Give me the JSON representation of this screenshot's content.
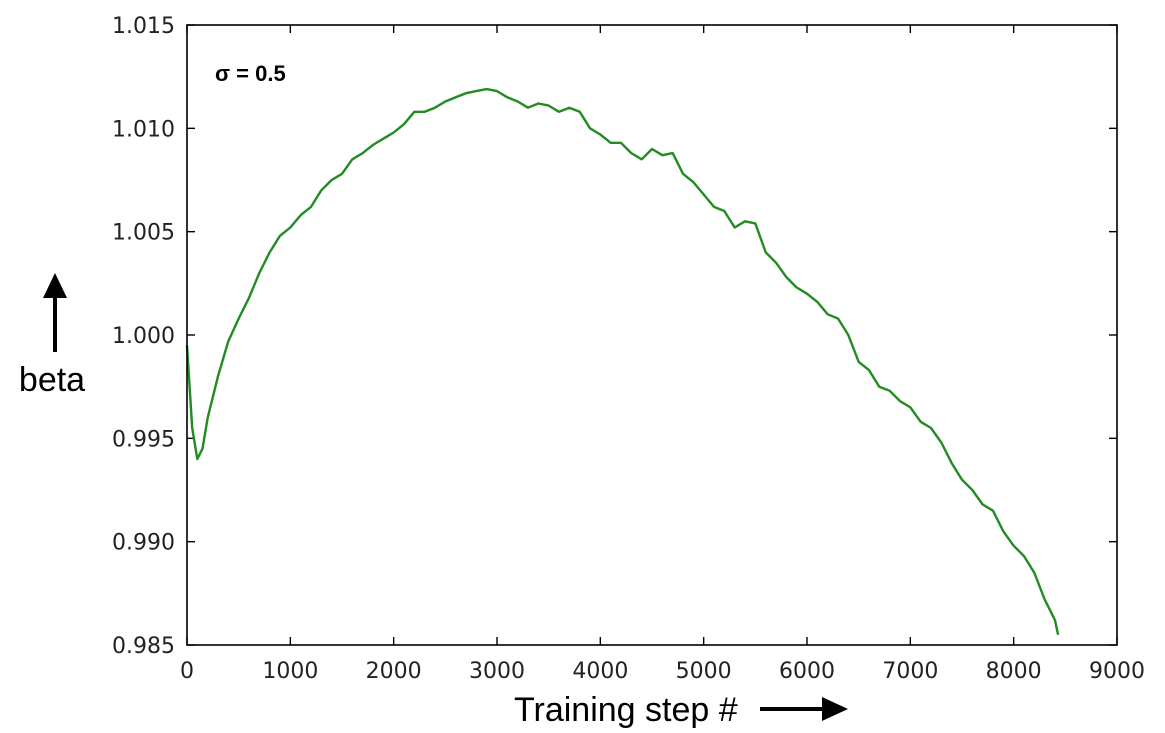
{
  "chart_data": {
    "type": "line",
    "title": "",
    "xlabel": "Training step #",
    "ylabel": "beta",
    "annotation": "σ = 0.5",
    "xlim": [
      0,
      9000
    ],
    "ylim": [
      0.985,
      1.015
    ],
    "grid": false,
    "legend": "none",
    "xticks": [
      0,
      1000,
      2000,
      3000,
      4000,
      5000,
      6000,
      7000,
      8000,
      9000
    ],
    "xtick_labels": [
      "0",
      "1000",
      "2000",
      "3000",
      "4000",
      "5000",
      "6000",
      "7000",
      "8000",
      "9000"
    ],
    "yticks": [
      0.985,
      0.99,
      0.995,
      1.0,
      1.005,
      1.01,
      1.015
    ],
    "ytick_labels": [
      "0.985",
      "0.990",
      "0.995",
      "1.000",
      "1.005",
      "1.010",
      "1.015"
    ],
    "series": [
      {
        "color": "#228B22",
        "x": [
          0,
          50,
          100,
          150,
          200,
          300,
          400,
          500,
          600,
          700,
          800,
          900,
          1000,
          1100,
          1200,
          1300,
          1400,
          1500,
          1600,
          1700,
          1800,
          1900,
          2000,
          2100,
          2200,
          2300,
          2400,
          2500,
          2600,
          2700,
          2800,
          2900,
          3000,
          3100,
          3200,
          3300,
          3400,
          3500,
          3600,
          3700,
          3800,
          3900,
          4000,
          4100,
          4200,
          4300,
          4400,
          4500,
          4600,
          4700,
          4800,
          4900,
          5000,
          5100,
          5200,
          5300,
          5400,
          5500,
          5600,
          5700,
          5800,
          5900,
          6000,
          6100,
          6200,
          6300,
          6400,
          6500,
          6600,
          6700,
          6800,
          6900,
          7000,
          7100,
          7200,
          7300,
          7400,
          7500,
          7600,
          7700,
          7800,
          7900,
          8000,
          8100,
          8200,
          8300,
          8400,
          8430
        ],
        "y": [
          0.9995,
          0.9955,
          0.994,
          0.9945,
          0.996,
          0.998,
          0.9997,
          1.0008,
          1.0018,
          1.003,
          1.004,
          1.0048,
          1.0052,
          1.0058,
          1.0062,
          1.007,
          1.0075,
          1.0078,
          1.0085,
          1.0088,
          1.0092,
          1.0095,
          1.0098,
          1.0102,
          1.0108,
          1.0108,
          1.011,
          1.0113,
          1.0115,
          1.0117,
          1.0118,
          1.0119,
          1.0118,
          1.0115,
          1.0113,
          1.011,
          1.0112,
          1.0111,
          1.0108,
          1.011,
          1.0108,
          1.01,
          1.0097,
          1.0093,
          1.0093,
          1.0088,
          1.0085,
          1.009,
          1.0087,
          1.0088,
          1.0078,
          1.0074,
          1.0068,
          1.0062,
          1.006,
          1.0052,
          1.0055,
          1.0054,
          1.004,
          1.0035,
          1.0028,
          1.0023,
          1.002,
          1.0016,
          1.001,
          1.0008,
          1.0,
          0.9987,
          0.9983,
          0.9975,
          0.9973,
          0.9968,
          0.9965,
          0.9958,
          0.9955,
          0.9948,
          0.9938,
          0.993,
          0.9925,
          0.9918,
          0.9915,
          0.9905,
          0.9898,
          0.9893,
          0.9885,
          0.9872,
          0.9862,
          0.9855
        ]
      }
    ]
  }
}
